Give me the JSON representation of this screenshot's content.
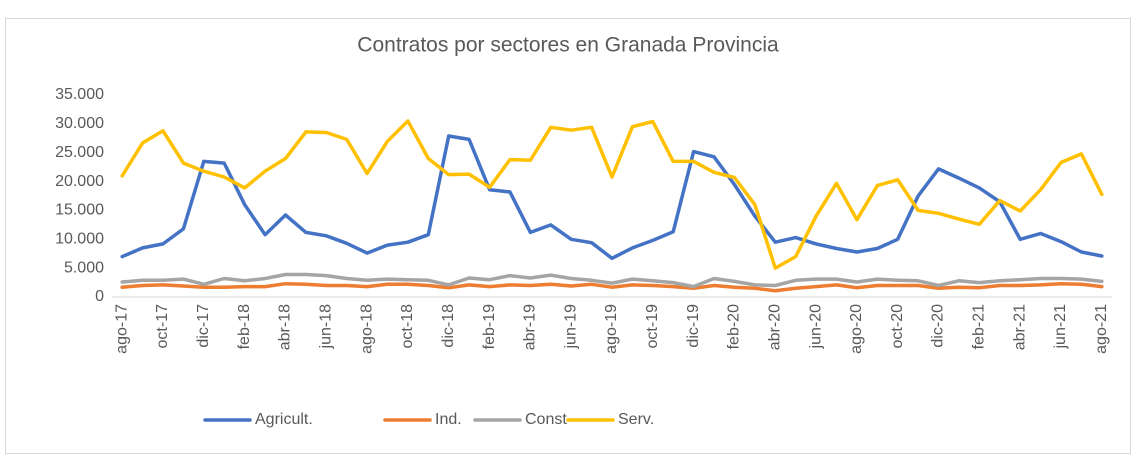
{
  "chart_data": {
    "type": "line",
    "title": "Contratos por sectores en Granada Provincia",
    "categories": [
      "ago-17",
      null,
      "oct-17",
      null,
      "dic-17",
      null,
      "feb-18",
      null,
      "abr-18",
      null,
      "jun-18",
      null,
      "ago-18",
      null,
      "oct-18",
      null,
      "dic-18",
      null,
      "feb-19",
      null,
      "abr-19",
      null,
      "jun-19",
      null,
      "ago-19",
      null,
      "oct-19",
      null,
      "dic-19",
      null,
      "feb-20",
      null,
      "abr-20",
      null,
      "jun-20",
      null,
      "ago-20",
      null,
      "oct-20",
      null,
      "dic-20",
      null,
      "feb-21",
      null,
      "abr-21",
      null,
      "jun-21",
      null,
      "ago-21"
    ],
    "series": [
      {
        "name": "Agricult.",
        "color": "#4472c4",
        "values": [
          7000,
          8500,
          9200,
          11800,
          23500,
          23200,
          16000,
          10800,
          14200,
          11200,
          10600,
          9300,
          7600,
          9000,
          9500,
          10800,
          27900,
          27300,
          18600,
          18200,
          11200,
          12500,
          10000,
          9400,
          6700,
          8500,
          9800,
          11300,
          25200,
          24300,
          19500,
          14000,
          9500,
          10300,
          9200,
          8400,
          7800,
          8400,
          10000,
          17500,
          22200,
          20600,
          18900,
          16500,
          10000,
          11000,
          9600,
          7800,
          7100
        ]
      },
      {
        "name": "Ind.",
        "color": "#ed7d31",
        "values": [
          1700,
          2000,
          2100,
          1900,
          1700,
          1700,
          1800,
          1800,
          2300,
          2200,
          2000,
          2000,
          1800,
          2200,
          2200,
          2000,
          1600,
          2100,
          1800,
          2100,
          2000,
          2200,
          1900,
          2200,
          1700,
          2100,
          2000,
          1800,
          1500,
          2000,
          1700,
          1500,
          1100,
          1500,
          1800,
          2100,
          1600,
          2000,
          2000,
          2000,
          1500,
          1700,
          1600,
          2000,
          2000,
          2100,
          2300,
          2200,
          1800
        ]
      },
      {
        "name": "Const",
        "color": "#a5a5a5",
        "values": [
          2600,
          2900,
          2900,
          3100,
          2200,
          3200,
          2800,
          3200,
          3900,
          3900,
          3700,
          3200,
          2900,
          3100,
          3000,
          2900,
          2100,
          3300,
          3000,
          3700,
          3300,
          3800,
          3200,
          2900,
          2400,
          3100,
          2800,
          2500,
          1800,
          3200,
          2700,
          2100,
          2000,
          2900,
          3100,
          3100,
          2600,
          3100,
          2900,
          2800,
          2000,
          2800,
          2500,
          2800,
          3000,
          3200,
          3200,
          3100,
          2700
        ]
      },
      {
        "name": "Serv.",
        "color": "#ffc000",
        "values": [
          21000,
          26700,
          28800,
          23200,
          21800,
          20800,
          18900,
          21800,
          24000,
          28600,
          28500,
          27300,
          21400,
          27000,
          30500,
          24000,
          21200,
          21300,
          19000,
          23800,
          23700,
          29400,
          28900,
          29400,
          20800,
          29500,
          30400,
          23500,
          23500,
          21600,
          20700,
          16000,
          5000,
          7000,
          14000,
          19700,
          13400,
          19300,
          20300,
          15000,
          14500,
          13500,
          12600,
          16700,
          14900,
          18600,
          23300,
          24800,
          17800
        ]
      }
    ],
    "ylim": [
      0,
      35000
    ],
    "yticks": [
      0,
      {
        "value": 5000,
        "label": "5.000"
      },
      {
        "value": 10000,
        "label": "10.000"
      },
      {
        "value": 15000,
        "label": "15.000"
      },
      {
        "value": 20000,
        "label": "20.000"
      },
      {
        "value": 25000,
        "label": "25.000"
      },
      {
        "value": 30000,
        "label": "30.000"
      },
      {
        "value": 35000,
        "label": "35.000"
      }
    ],
    "grid": false,
    "legend": "bottom"
  }
}
